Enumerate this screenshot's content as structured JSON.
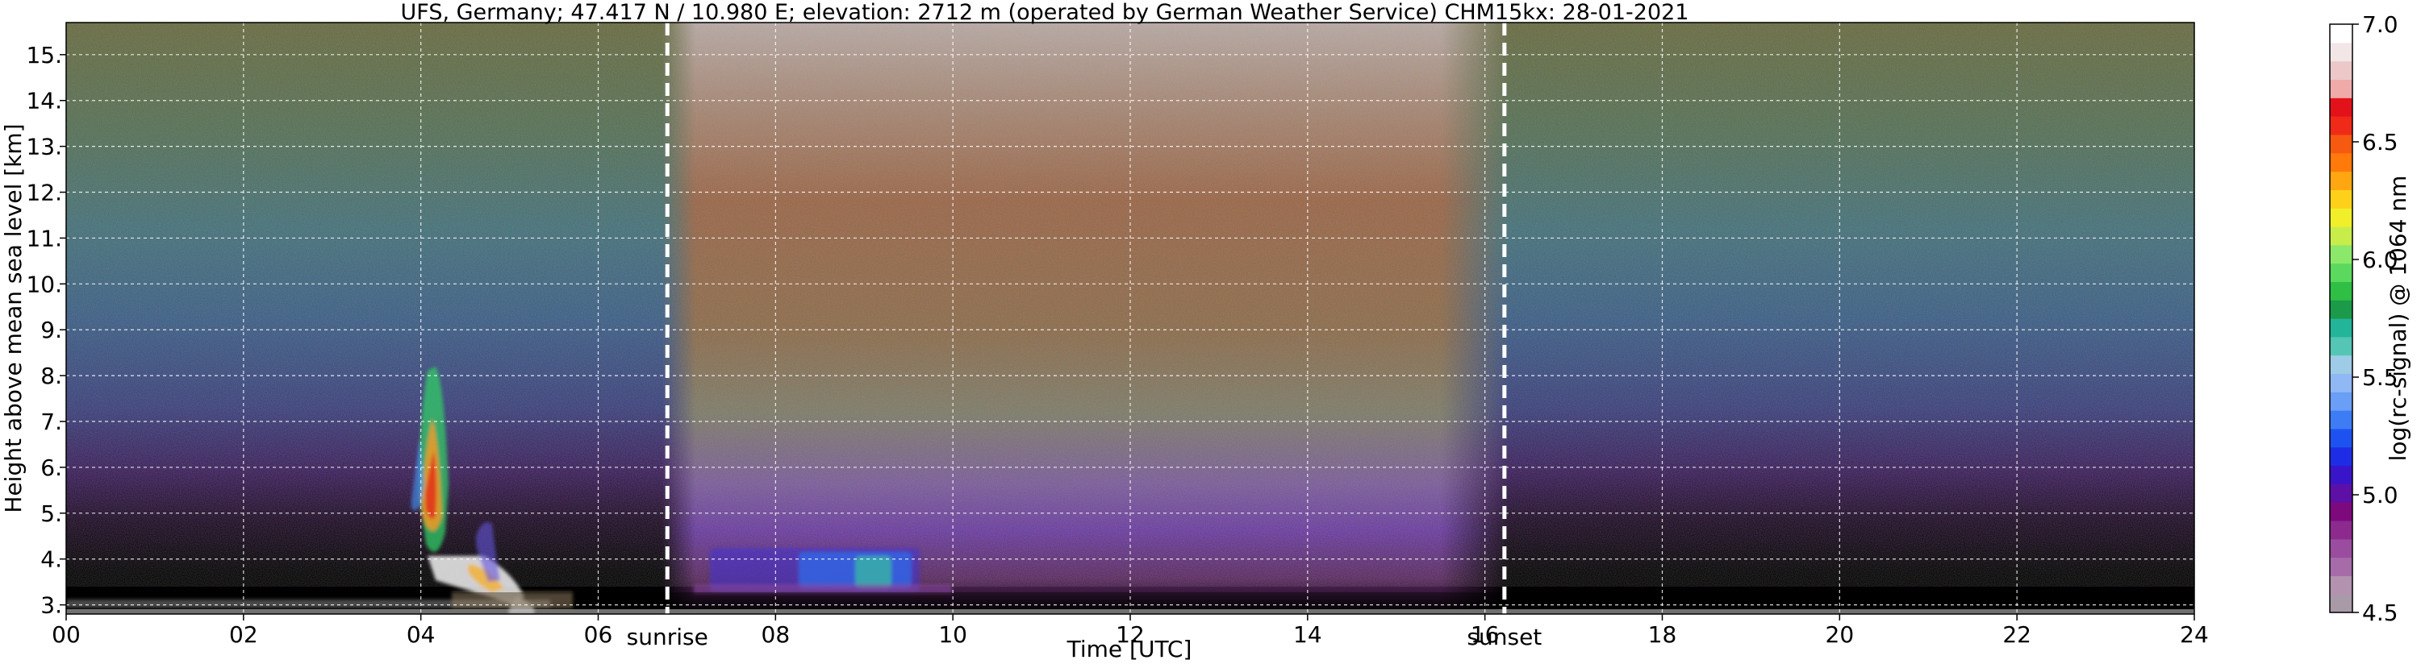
{
  "chart_data": {
    "type": "heatmap",
    "title": "UFS, Germany; 47.417 N / 10.980 E; elevation: 2712 m  (operated by German Weather Service)     CHM15kx: 28-01-2021",
    "xlabel": "Time [UTC]",
    "ylabel": "Height above mean sea level [km]",
    "xlim": [
      0,
      24
    ],
    "ylim": [
      2.8,
      15.7
    ],
    "x_ticks": [
      0,
      2,
      4,
      6,
      8,
      10,
      12,
      14,
      16,
      18,
      20,
      22,
      24
    ],
    "x_tick_labels": [
      "00",
      "02",
      "04",
      "06",
      "08",
      "10",
      "12",
      "14",
      "16",
      "18",
      "20",
      "22",
      "24"
    ],
    "y_ticks": [
      3,
      4,
      5,
      6,
      7,
      8,
      9,
      10,
      11,
      12,
      13,
      14,
      15
    ],
    "y_tick_labels": [
      "3.",
      "4.",
      "5.",
      "6.",
      "7.",
      "8.",
      "9.",
      "10.",
      "11.",
      "12.",
      "13.",
      "14.",
      "15."
    ],
    "grid": true,
    "vlines": [
      {
        "x": 6.78,
        "label": "sunrise"
      },
      {
        "x": 16.22,
        "label": "sunset"
      }
    ],
    "colorbar": {
      "label": "log(rc-signal) @ 1064 nm",
      "range": [
        4.5,
        7.0
      ],
      "ticks": [
        4.5,
        5.0,
        5.5,
        6.0,
        6.5,
        7.0
      ],
      "tick_labels": [
        "4.5",
        "5.0",
        "5.5",
        "6.0",
        "6.5",
        "7.0"
      ],
      "colors": [
        "#a99aa8",
        "#b392b0",
        "#a66ba8",
        "#9a4c9e",
        "#8c2a8e",
        "#7d0a7d",
        "#5c10a6",
        "#3a14c8",
        "#1f2ce6",
        "#1e52f0",
        "#3d7cf5",
        "#6a9ef7",
        "#8fb8f5",
        "#9ecbe6",
        "#55c5b5",
        "#23b59a",
        "#1b9a4a",
        "#2fbf45",
        "#5ad95e",
        "#8ce86a",
        "#c8ec4a",
        "#f0ef2a",
        "#ffd01a",
        "#ffa611",
        "#ff7a0a",
        "#f55a10",
        "#f02a18",
        "#e3121a",
        "#f0aaa8",
        "#ecc8c8",
        "#f2e6e6",
        "#ffffff"
      ]
    }
  }
}
